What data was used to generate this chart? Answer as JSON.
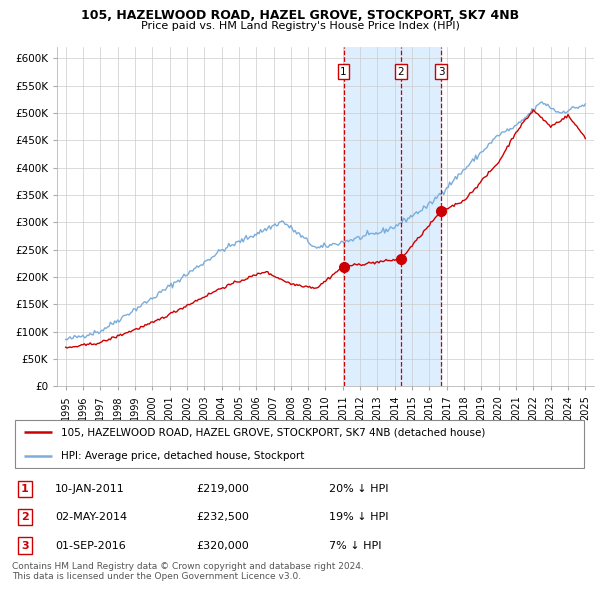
{
  "title1": "105, HAZELWOOD ROAD, HAZEL GROVE, STOCKPORT, SK7 4NB",
  "title2": "Price paid vs. HM Land Registry's House Price Index (HPI)",
  "ylim": [
    0,
    620000
  ],
  "yticks": [
    0,
    50000,
    100000,
    150000,
    200000,
    250000,
    300000,
    350000,
    400000,
    450000,
    500000,
    550000,
    600000
  ],
  "ytick_labels": [
    "£0",
    "£50K",
    "£100K",
    "£150K",
    "£200K",
    "£250K",
    "£300K",
    "£350K",
    "£400K",
    "£450K",
    "£500K",
    "£550K",
    "£600K"
  ],
  "legend_line1": "105, HAZELWOOD ROAD, HAZEL GROVE, STOCKPORT, SK7 4NB (detached house)",
  "legend_line2": "HPI: Average price, detached house, Stockport",
  "line_color_house": "#cc0000",
  "line_color_hpi": "#7aaddb",
  "vline_color": "#cc0000",
  "shade_color": "#ddeeff",
  "t1": 2011.04,
  "t2": 2014.34,
  "t3": 2016.67,
  "p1": 219000,
  "p2": 232500,
  "p3": 320000,
  "footer": "Contains HM Land Registry data © Crown copyright and database right 2024.\nThis data is licensed under the Open Government Licence v3.0.",
  "grid_color": "#cccccc",
  "table_rows": [
    [
      "1",
      "10-JAN-2011",
      "£219,000",
      "20% ↓ HPI"
    ],
    [
      "2",
      "02-MAY-2014",
      "£232,500",
      "19% ↓ HPI"
    ],
    [
      "3",
      "01-SEP-2016",
      "£320,000",
      "7% ↓ HPI"
    ]
  ]
}
